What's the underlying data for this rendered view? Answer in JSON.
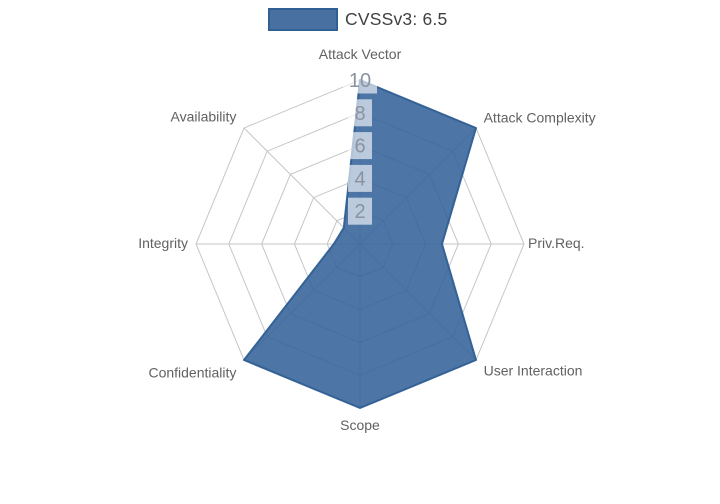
{
  "chart_data": {
    "type": "radar",
    "categories": [
      "Attack Vector",
      "Attack Complexity",
      "Priv.Req.",
      "User Interaction",
      "Scope",
      "Confidentiality",
      "Integrity",
      "Availability"
    ],
    "series": [
      {
        "name": "CVSSv3: 6.5",
        "values": [
          10,
          10,
          5,
          10,
          10,
          10,
          1.6,
          1.4
        ]
      }
    ],
    "radial_ticks": [
      2,
      4,
      6,
      8,
      10
    ],
    "radial_range": [
      0,
      10
    ],
    "grid": true,
    "legend_position": "top-center",
    "colors": {
      "fill": "#346298",
      "fill_opacity": 0.88,
      "line": "#2f5f93",
      "grid": "#c6c6c6",
      "axis_label": "#616161",
      "tick_label": "#8a939f",
      "tick_bg": "#ffffff",
      "tick_bg_opacity": 0.62,
      "legend_text": "#404040"
    }
  }
}
